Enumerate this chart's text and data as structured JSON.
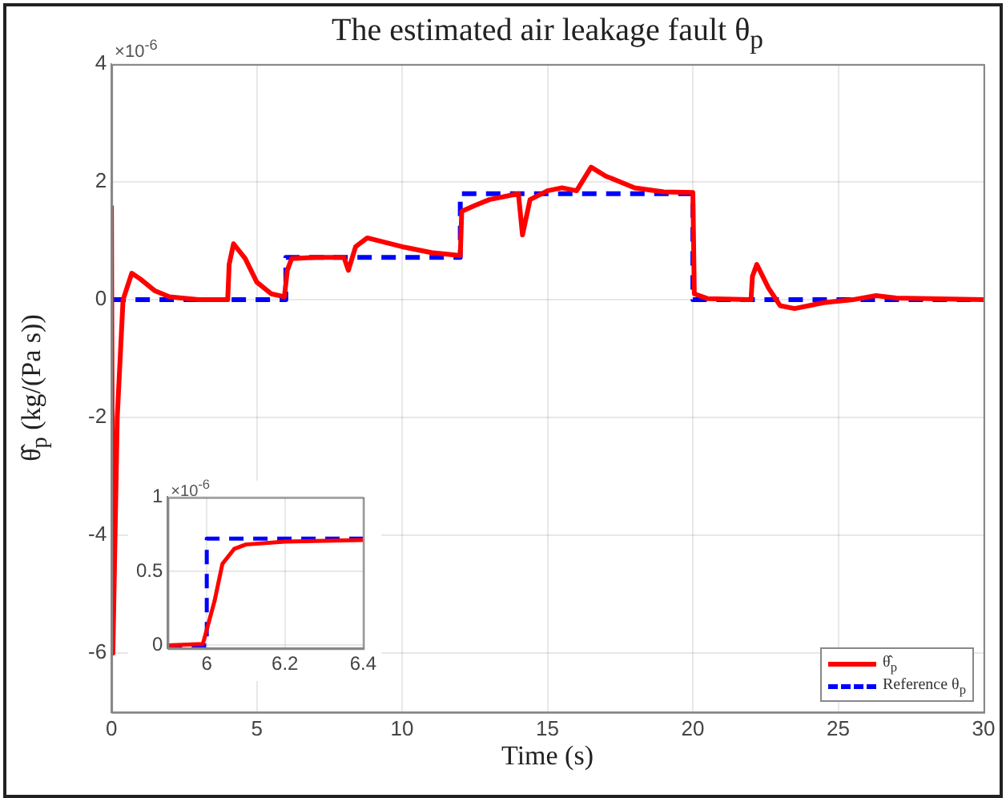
{
  "chart_data": [
    {
      "type": "line",
      "title": "The estimated air leakage fault θ$_{p}$",
      "xlabel": "Time (s)",
      "ylabel": "θ̂$_{p}$ (kg/(Pa s))",
      "annotations": [
        "×10$^{-6}$"
      ],
      "xlim": [
        0,
        30
      ],
      "xticks": [
        0,
        5,
        10,
        15,
        20,
        25,
        30
      ],
      "ylim": [
        -7,
        4
      ],
      "yticks": [
        -6,
        -4,
        -2,
        0,
        2,
        4
      ],
      "grid": true,
      "legend": "bottom right",
      "marker": "none",
      "series": [
        {
          "name": "θ̂$_{p}$",
          "color": "#ff0000",
          "line_style": "solid",
          "x": [
            0,
            0.05,
            0.2,
            0.4,
            0.7,
            1,
            1.5,
            2,
            3,
            4,
            4.05,
            4.2,
            4.6,
            5,
            5.5,
            5.95,
            6.05,
            6.2,
            7,
            8,
            8.15,
            8.4,
            8.8,
            10,
            11,
            12,
            12.05,
            12.5,
            13,
            14,
            14.14,
            14.4,
            15,
            15.5,
            16,
            16.5,
            17,
            18,
            19,
            20,
            20.05,
            20.5,
            22,
            22.05,
            22.2,
            22.6,
            23,
            23.5,
            24.5,
            25.5,
            26.3,
            27,
            30
          ],
          "values": [
            1.6,
            -6,
            -2,
            0,
            0.45,
            0.35,
            0.15,
            0.05,
            0,
            0,
            0.6,
            0.95,
            0.7,
            0.3,
            0.1,
            0.05,
            0.5,
            0.7,
            0.72,
            0.72,
            0.5,
            0.9,
            1.05,
            0.9,
            0.8,
            0.75,
            1.5,
            1.6,
            1.7,
            1.8,
            1.1,
            1.7,
            1.85,
            1.9,
            1.85,
            2.25,
            2.1,
            1.9,
            1.83,
            1.82,
            0.1,
            0.02,
            0,
            0.4,
            0.6,
            0.2,
            -0.1,
            -0.15,
            -0.05,
            0,
            0.07,
            0.03,
            0
          ]
        },
        {
          "name": "Reference θ$_{p}$",
          "color": "#0000ff",
          "line_style": "dashed",
          "x": [
            0,
            6,
            6,
            12,
            12,
            20,
            20,
            30
          ],
          "values": [
            0,
            0,
            0.72,
            0.72,
            1.8,
            1.8,
            0,
            0
          ]
        }
      ]
    },
    {
      "type": "line",
      "annotations": [
        "×10$^{-6}$"
      ],
      "xlim": [
        5.9,
        6.4
      ],
      "xticks": [
        6,
        6.2,
        6.4
      ],
      "ylim": [
        -0.02,
        1
      ],
      "yticks": [
        0,
        0.5,
        1
      ],
      "grid": true,
      "marker": "none",
      "series": [
        {
          "color": "#ff0000",
          "line_style": "solid",
          "x": [
            5.9,
            5.99,
            6.02,
            6.04,
            6.07,
            6.1,
            6.2,
            6.4
          ],
          "values": [
            0,
            0.01,
            0.3,
            0.55,
            0.65,
            0.68,
            0.7,
            0.71
          ]
        },
        {
          "color": "#0000ff",
          "line_style": "dashed",
          "x": [
            5.9,
            6,
            6,
            6.4
          ],
          "values": [
            0,
            0,
            0.72,
            0.72
          ]
        }
      ]
    }
  ]
}
